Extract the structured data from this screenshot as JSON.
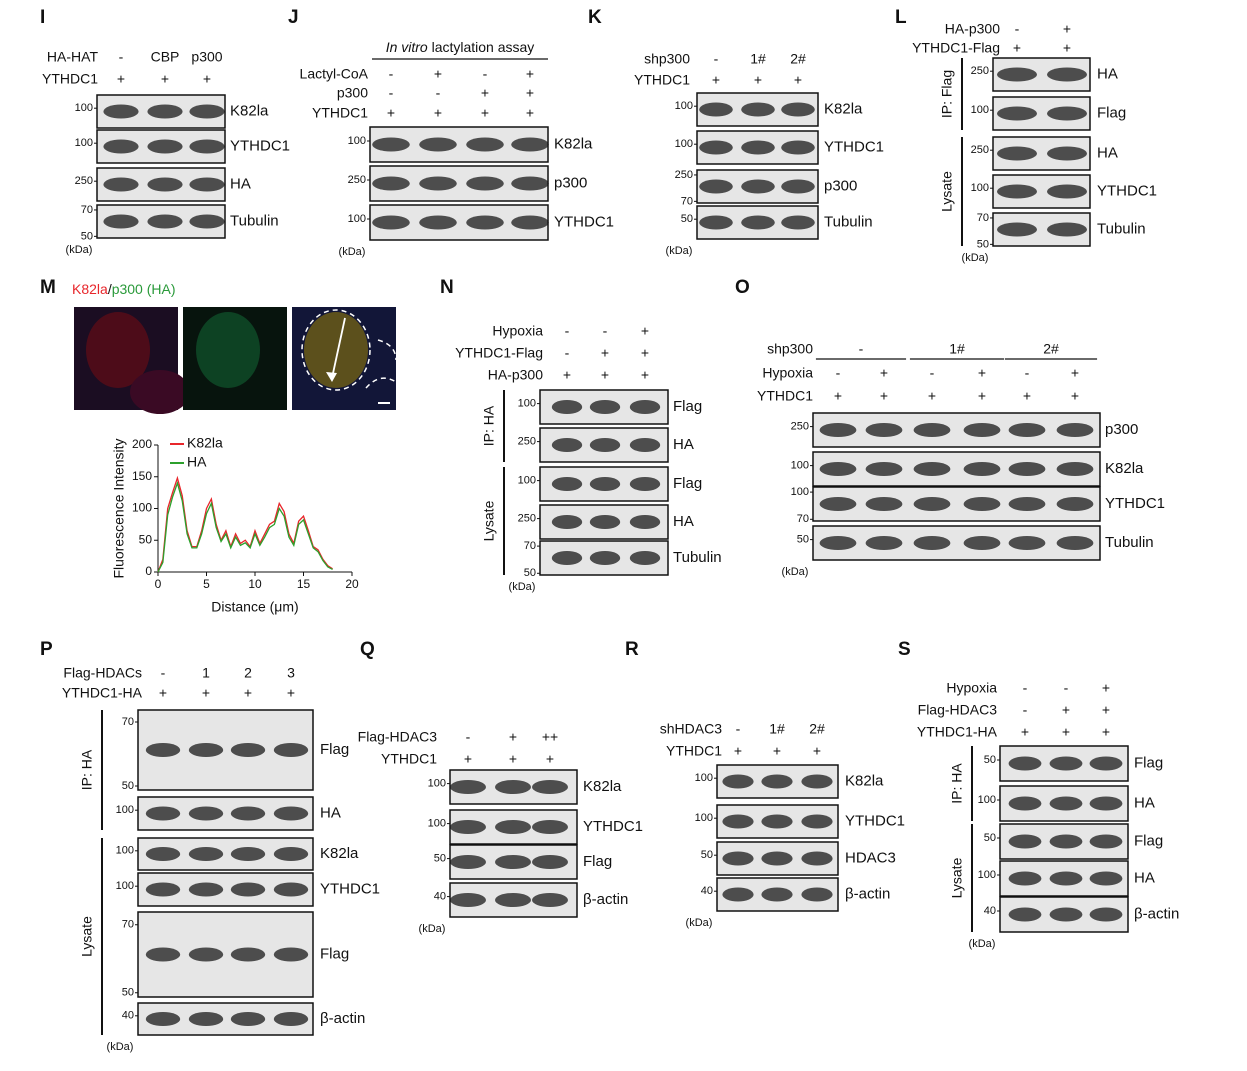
{
  "panels": [
    {
      "label": "I",
      "conditions": [
        {
          "name": "HA-HAT",
          "values": [
            "-",
            "CBP",
            "p300"
          ]
        },
        {
          "name": "YTHDC1",
          "values": [
            "+",
            "+",
            "+"
          ]
        }
      ],
      "sections": [
        {
          "blots": [
            {
              "label": "K82la",
              "markers": [
                100
              ]
            },
            {
              "label": "YTHDC1",
              "markers": [
                100
              ]
            },
            {
              "label": "HA",
              "markers": [
                250
              ]
            },
            {
              "label": "Tubulin",
              "markers": [
                70,
                50
              ]
            }
          ]
        }
      ],
      "unit": "(kDa)"
    },
    {
      "label": "J",
      "header": [
        "In vitro",
        " lactylation assay"
      ],
      "conditions": [
        {
          "name": "Lactyl-CoA",
          "values": [
            "-",
            "+",
            "-",
            "+"
          ]
        },
        {
          "name": "p300",
          "values": [
            "-",
            "-",
            "+",
            "+"
          ]
        },
        {
          "name": "YTHDC1",
          "values": [
            "+",
            "+",
            "+",
            "+"
          ]
        }
      ],
      "sections": [
        {
          "blots": [
            {
              "label": "K82la",
              "markers": [
                100
              ]
            },
            {
              "label": "p300",
              "markers": [
                250
              ]
            },
            {
              "label": "YTHDC1",
              "markers": [
                100
              ]
            }
          ]
        }
      ],
      "unit": "(kDa)"
    },
    {
      "label": "K",
      "conditions": [
        {
          "name": "shp300",
          "values": [
            "-",
            "1#",
            "2#"
          ]
        },
        {
          "name": "YTHDC1",
          "values": [
            "+",
            "+",
            "+"
          ]
        }
      ],
      "sections": [
        {
          "blots": [
            {
              "label": "K82la",
              "markers": [
                100
              ]
            },
            {
              "label": "YTHDC1",
              "markers": [
                100
              ]
            },
            {
              "label": "p300",
              "markers": [
                250,
                70
              ]
            },
            {
              "label": "Tubulin",
              "markers": [
                50
              ]
            }
          ]
        }
      ],
      "unit": "(kDa)"
    },
    {
      "label": "L",
      "conditions": [
        {
          "name": "HA-p300",
          "values": [
            "-",
            "+"
          ]
        },
        {
          "name": "YTHDC1-Flag",
          "values": [
            "+",
            "+"
          ]
        }
      ],
      "sections": [
        {
          "label": "IP: Flag",
          "blots": [
            {
              "label": "HA",
              "markers": [
                250
              ]
            },
            {
              "label": "Flag",
              "markers": [
                100
              ]
            }
          ]
        },
        {
          "label": "Lysate",
          "blots": [
            {
              "label": "HA",
              "markers": [
                250
              ]
            },
            {
              "label": "YTHDC1",
              "markers": [
                100
              ]
            },
            {
              "label": "Tubulin",
              "markers": [
                70,
                50
              ]
            }
          ]
        }
      ],
      "unit": "(kDa)"
    },
    {
      "label": "M",
      "title": [
        "K82la",
        "/",
        "p300 (HA)"
      ],
      "chart": {
        "type": "line",
        "ylabel": "Fluorescence Intensity",
        "xlabel": "Distance (μm)",
        "xlim": [
          0,
          20
        ],
        "ylim": [
          0,
          200
        ],
        "xticks": [
          0,
          5,
          10,
          15,
          20
        ],
        "yticks": [
          0,
          50,
          100,
          150,
          200
        ],
        "x": [
          0,
          0.5,
          1,
          1.5,
          2,
          2.5,
          3,
          3.5,
          4,
          4.5,
          5,
          5.5,
          6,
          6.5,
          7,
          7.5,
          8,
          8.5,
          9,
          9.5,
          10,
          10.5,
          11,
          11.5,
          12,
          12.5,
          13,
          13.5,
          14,
          14.5,
          15,
          15.5,
          16,
          16.5,
          17,
          17.5,
          18
        ],
        "series": [
          {
            "name": "K82la",
            "color": "#e8262b",
            "values": [
              0,
              20,
              100,
              125,
              148,
              120,
              65,
              40,
              40,
              65,
              100,
              115,
              75,
              50,
              65,
              40,
              60,
              45,
              50,
              40,
              65,
              45,
              60,
              75,
              80,
              108,
              95,
              60,
              45,
              80,
              88,
              65,
              40,
              35,
              20,
              10,
              5
            ]
          },
          {
            "name": "HA",
            "color": "#2ca02c",
            "values": [
              0,
              15,
              90,
              118,
              140,
              112,
              60,
              38,
              38,
              60,
              92,
              108,
              70,
              48,
              60,
              38,
              55,
              42,
              46,
              38,
              60,
              42,
              55,
              70,
              75,
              100,
              88,
              55,
              42,
              75,
              82,
              60,
              38,
              32,
              18,
              8,
              4
            ]
          }
        ]
      }
    },
    {
      "label": "N",
      "conditions": [
        {
          "name": "Hypoxia",
          "values": [
            "-",
            "-",
            "+"
          ]
        },
        {
          "name": "YTHDC1-Flag",
          "values": [
            "-",
            "+",
            "+"
          ]
        },
        {
          "name": "HA-p300",
          "values": [
            "+",
            "+",
            "+"
          ]
        }
      ],
      "sections": [
        {
          "label": "IP: HA",
          "blots": [
            {
              "label": "Flag",
              "markers": [
                100
              ]
            },
            {
              "label": "HA",
              "markers": [
                250
              ]
            }
          ]
        },
        {
          "label": "Lysate",
          "blots": [
            {
              "label": "Flag",
              "markers": [
                100
              ]
            },
            {
              "label": "HA",
              "markers": [
                250
              ]
            },
            {
              "label": "Tubulin",
              "markers": [
                70,
                50
              ]
            }
          ]
        }
      ],
      "unit": "(kDa)"
    },
    {
      "label": "O",
      "conditions": [
        {
          "name": "shp300",
          "groups": [
            "-",
            "1#",
            "2#"
          ]
        },
        {
          "name": "Hypoxia",
          "values": [
            "-",
            "+",
            "-",
            "+",
            "-",
            "+"
          ]
        },
        {
          "name": "YTHDC1",
          "values": [
            "+",
            "+",
            "+",
            "+",
            "+",
            "+"
          ]
        }
      ],
      "sections": [
        {
          "blots": [
            {
              "label": "p300",
              "markers": [
                250
              ]
            },
            {
              "label": "K82la",
              "markers": [
                100
              ]
            },
            {
              "label": "YTHDC1",
              "markers": [
                100,
                70
              ]
            },
            {
              "label": "Tubulin",
              "markers": [
                50
              ]
            }
          ]
        }
      ],
      "unit": "(kDa)"
    },
    {
      "label": "P",
      "conditions": [
        {
          "name": "Flag-HDACs",
          "values": [
            "-",
            "1",
            "2",
            "3"
          ]
        },
        {
          "name": "YTHDC1-HA",
          "values": [
            "+",
            "+",
            "+",
            "+"
          ]
        }
      ],
      "sections": [
        {
          "label": "IP: HA",
          "blots": [
            {
              "label": "Flag",
              "markers": [
                70,
                50
              ]
            },
            {
              "label": "HA",
              "markers": [
                100
              ]
            }
          ]
        },
        {
          "label": "Lysate",
          "blots": [
            {
              "label": "K82la",
              "markers": [
                100
              ]
            },
            {
              "label": "YTHDC1",
              "markers": [
                100
              ]
            },
            {
              "label": "Flag",
              "markers": [
                70,
                50
              ]
            },
            {
              "label": "β-actin",
              "markers": [
                40
              ]
            }
          ]
        }
      ],
      "unit": "(kDa)"
    },
    {
      "label": "Q",
      "conditions": [
        {
          "name": "Flag-HDAC3",
          "values": [
            "-",
            "+",
            "++"
          ]
        },
        {
          "name": "YTHDC1",
          "values": [
            "+",
            "+",
            "+"
          ]
        }
      ],
      "sections": [
        {
          "blots": [
            {
              "label": "K82la",
              "markers": [
                100
              ]
            },
            {
              "label": "YTHDC1",
              "markers": [
                100
              ]
            },
            {
              "label": "Flag",
              "markers": [
                50
              ]
            },
            {
              "label": "β-actin",
              "markers": [
                40
              ]
            }
          ]
        }
      ],
      "unit": "(kDa)"
    },
    {
      "label": "R",
      "conditions": [
        {
          "name": "shHDAC3",
          "values": [
            "-",
            "1#",
            "2#"
          ]
        },
        {
          "name": "YTHDC1",
          "values": [
            "+",
            "+",
            "+"
          ]
        }
      ],
      "sections": [
        {
          "blots": [
            {
              "label": "K82la",
              "markers": [
                100
              ]
            },
            {
              "label": "YTHDC1",
              "markers": [
                100
              ]
            },
            {
              "label": "HDAC3",
              "markers": [
                50
              ]
            },
            {
              "label": "β-actin",
              "markers": [
                40
              ]
            }
          ]
        }
      ],
      "unit": "(kDa)"
    },
    {
      "label": "S",
      "conditions": [
        {
          "name": "Hypoxia",
          "values": [
            "-",
            "-",
            "+"
          ]
        },
        {
          "name": "Flag-HDAC3",
          "values": [
            "-",
            "+",
            "+"
          ]
        },
        {
          "name": "YTHDC1-HA",
          "values": [
            "+",
            "+",
            "+"
          ]
        }
      ],
      "sections": [
        {
          "label": "IP: HA",
          "blots": [
            {
              "label": "Flag",
              "markers": [
                50
              ]
            },
            {
              "label": "HA",
              "markers": [
                100
              ]
            }
          ]
        },
        {
          "label": "Lysate",
          "blots": [
            {
              "label": "Flag",
              "markers": [
                50
              ]
            },
            {
              "label": "HA",
              "markers": [
                100
              ]
            },
            {
              "label": "β-actin",
              "markers": [
                40
              ]
            }
          ]
        }
      ],
      "unit": "(kDa)"
    }
  ]
}
